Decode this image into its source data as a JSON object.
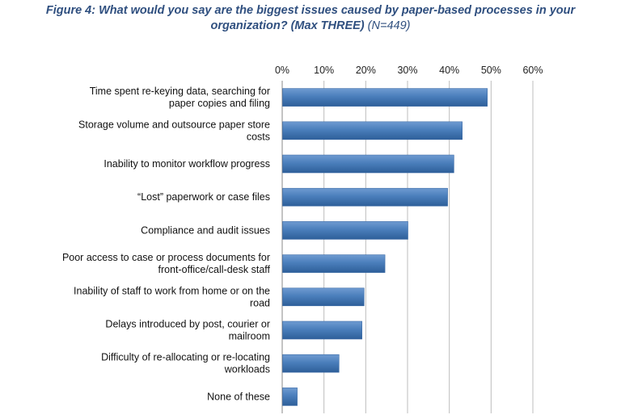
{
  "title": {
    "line1": "Figure 4: What would you say are the biggest issues caused by paper-based processes in your",
    "line2_main": "organization? (Max THREE)",
    "line2_n": "(N=449)"
  },
  "chart_data": {
    "type": "bar",
    "orientation": "horizontal",
    "title": "Figure 4: What would you say are the biggest issues caused by paper-based processes in your organization? (Max THREE) (N=449)",
    "xlim": [
      0,
      60
    ],
    "x_ticks": [
      "0%",
      "10%",
      "20%",
      "30%",
      "40%",
      "50%",
      "60%"
    ],
    "x_axis_position": "top",
    "grid": true,
    "categories": [
      [
        "Time spent re-keying data, searching for",
        "paper copies and filing"
      ],
      [
        "Storage volume and outsource paper store",
        "costs"
      ],
      [
        "Inability to monitor workflow progress"
      ],
      [
        "“Lost” paperwork or case files"
      ],
      [
        "Compliance and audit issues"
      ],
      [
        "Poor access to case or process documents for",
        "front-office/call-desk staff"
      ],
      [
        "Inability of staff to work from home or on the",
        "road"
      ],
      [
        "Delays introduced by post, courier or",
        "mailroom"
      ],
      [
        "Difficulty of re-allocating or re-locating",
        "workloads"
      ],
      [
        "None of these"
      ]
    ],
    "values": [
      49,
      43,
      41,
      39.5,
      30,
      24.5,
      19.5,
      19,
      13.5,
      3.5
    ],
    "bar_color": "#4a7ebb"
  }
}
